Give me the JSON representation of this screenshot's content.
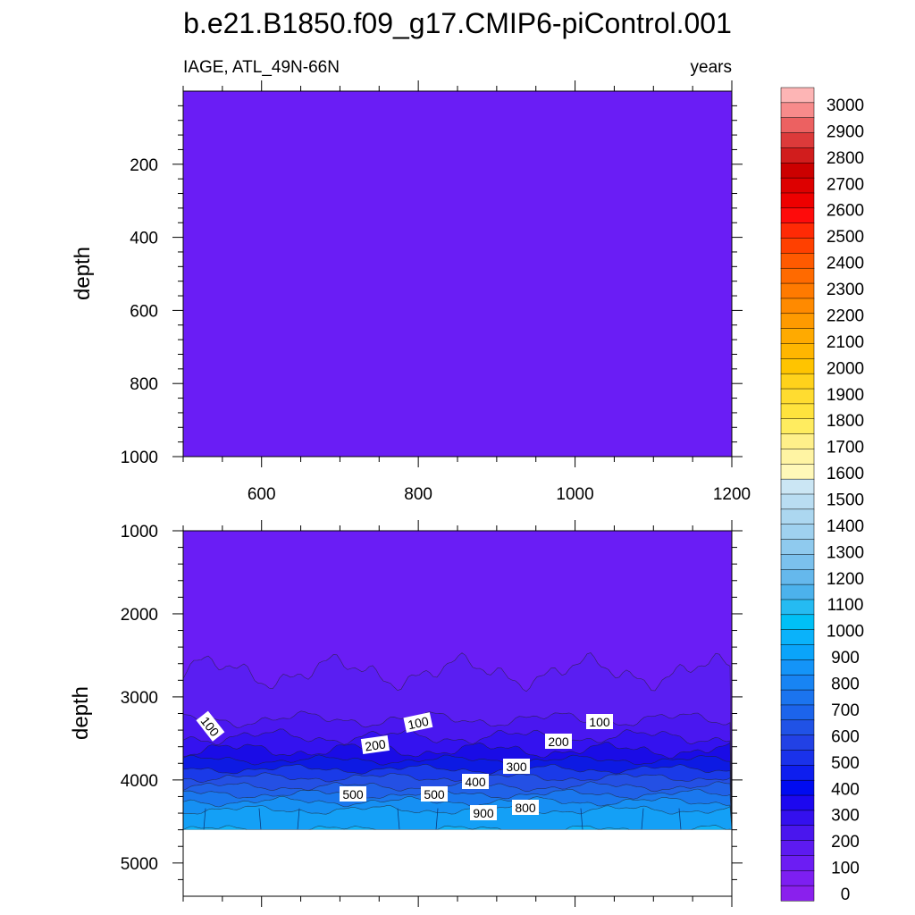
{
  "title": "b.e21.B1850.f09_g17.CMIP6-piControl.001",
  "chart_data": [
    {
      "type": "heatmap",
      "panel": "upper",
      "left_label": "IAGE, ATL_49N-66N",
      "right_label": "years",
      "ylabel": "depth",
      "xlabel": "",
      "xlim": [
        500,
        1200
      ],
      "ylim": [
        0,
        1000
      ],
      "y_reversed": true,
      "x_ticks": [
        "600",
        "800",
        "1000",
        "1200"
      ],
      "y_ticks": [
        "200",
        "400",
        "600",
        "800",
        "1000"
      ],
      "fill_value_range": [
        50,
        100
      ],
      "fill_color": "#6a1df5"
    },
    {
      "type": "heatmap",
      "panel": "lower",
      "ylabel": "depth",
      "xlabel": "",
      "xlim": [
        500,
        1200
      ],
      "ylim": [
        1000,
        5400
      ],
      "y_reversed": true,
      "y_ticks": [
        "1000",
        "2000",
        "3000",
        "4000",
        "5000"
      ],
      "x_ticks": [],
      "missing_below_depth": 4600,
      "contour_labels": [
        "100",
        "100",
        "100",
        "200",
        "200",
        "300",
        "400",
        "500",
        "500",
        "900",
        "800"
      ],
      "bands": [
        {
          "level": 50,
          "depth_mean": 2700,
          "color": "#5a1ef2"
        },
        {
          "level": 100,
          "depth_mean": 3270,
          "color": "#4a17f0"
        },
        {
          "level": 150,
          "depth_mean": 3480,
          "color": "#3412ef"
        },
        {
          "level": 200,
          "depth_mean": 3640,
          "color": "#1a0ce6"
        },
        {
          "level": 250,
          "depth_mean": 3760,
          "color": "#0d1ae3"
        },
        {
          "level": 300,
          "depth_mean": 3870,
          "color": "#1a3ae8"
        },
        {
          "level": 400,
          "depth_mean": 3970,
          "color": "#2450e4"
        },
        {
          "level": 500,
          "depth_mean": 4080,
          "color": "#2062e8"
        },
        {
          "level": 600,
          "depth_mean": 4170,
          "color": "#1a78ee"
        },
        {
          "level": 700,
          "depth_mean": 4260,
          "color": "#1690f3"
        },
        {
          "level": 800,
          "depth_mean": 4360,
          "color": "#14a0f6"
        },
        {
          "level": 900,
          "depth_mean": 4600,
          "color": "#0fb2f8"
        }
      ]
    }
  ],
  "colorbar": {
    "labels": [
      "3000",
      "2900",
      "2800",
      "2700",
      "2600",
      "2500",
      "2400",
      "2300",
      "2200",
      "2100",
      "2000",
      "1900",
      "1800",
      "1700",
      "1600",
      "1500",
      "1400",
      "1300",
      "1200",
      "1100",
      "1000",
      "900",
      "800",
      "700",
      "600",
      "500",
      "400",
      "300",
      "200",
      "100",
      "0"
    ],
    "colors_top_to_bottom": [
      "#fdb5b5",
      "#f78b8b",
      "#ec6161",
      "#dc3a3a",
      "#d11d1d",
      "#cc0000",
      "#dd0000",
      "#ee0000",
      "#fe0b0b",
      "#ff2a05",
      "#ff4000",
      "#ff5a00",
      "#ff6a00",
      "#ff7a00",
      "#ff8a00",
      "#ff9a00",
      "#ffaa00",
      "#ffb600",
      "#ffc400",
      "#ffd21b",
      "#ffdc30",
      "#ffe33d",
      "#ffec5f",
      "#fff08a",
      "#fff4a3",
      "#fff8b8",
      "#cbe6f4",
      "#b9ddf2",
      "#acd7f0",
      "#9fd1ef",
      "#8fcaee",
      "#7bc1ed",
      "#65b8ec",
      "#4cb2ec",
      "#25bbf2",
      "#00c0f6",
      "#0ab2fa",
      "#0aa4fa",
      "#1494f8",
      "#1884f3",
      "#1b74ef",
      "#1c64eb",
      "#2052e6",
      "#2241e5",
      "#1a32ea",
      "#0e1eef",
      "#000bf0",
      "#1c08ef",
      "#3410ee",
      "#4a16ee",
      "#5d1af0",
      "#6c1df3",
      "#7d1ff1",
      "#8a20ed"
    ]
  }
}
